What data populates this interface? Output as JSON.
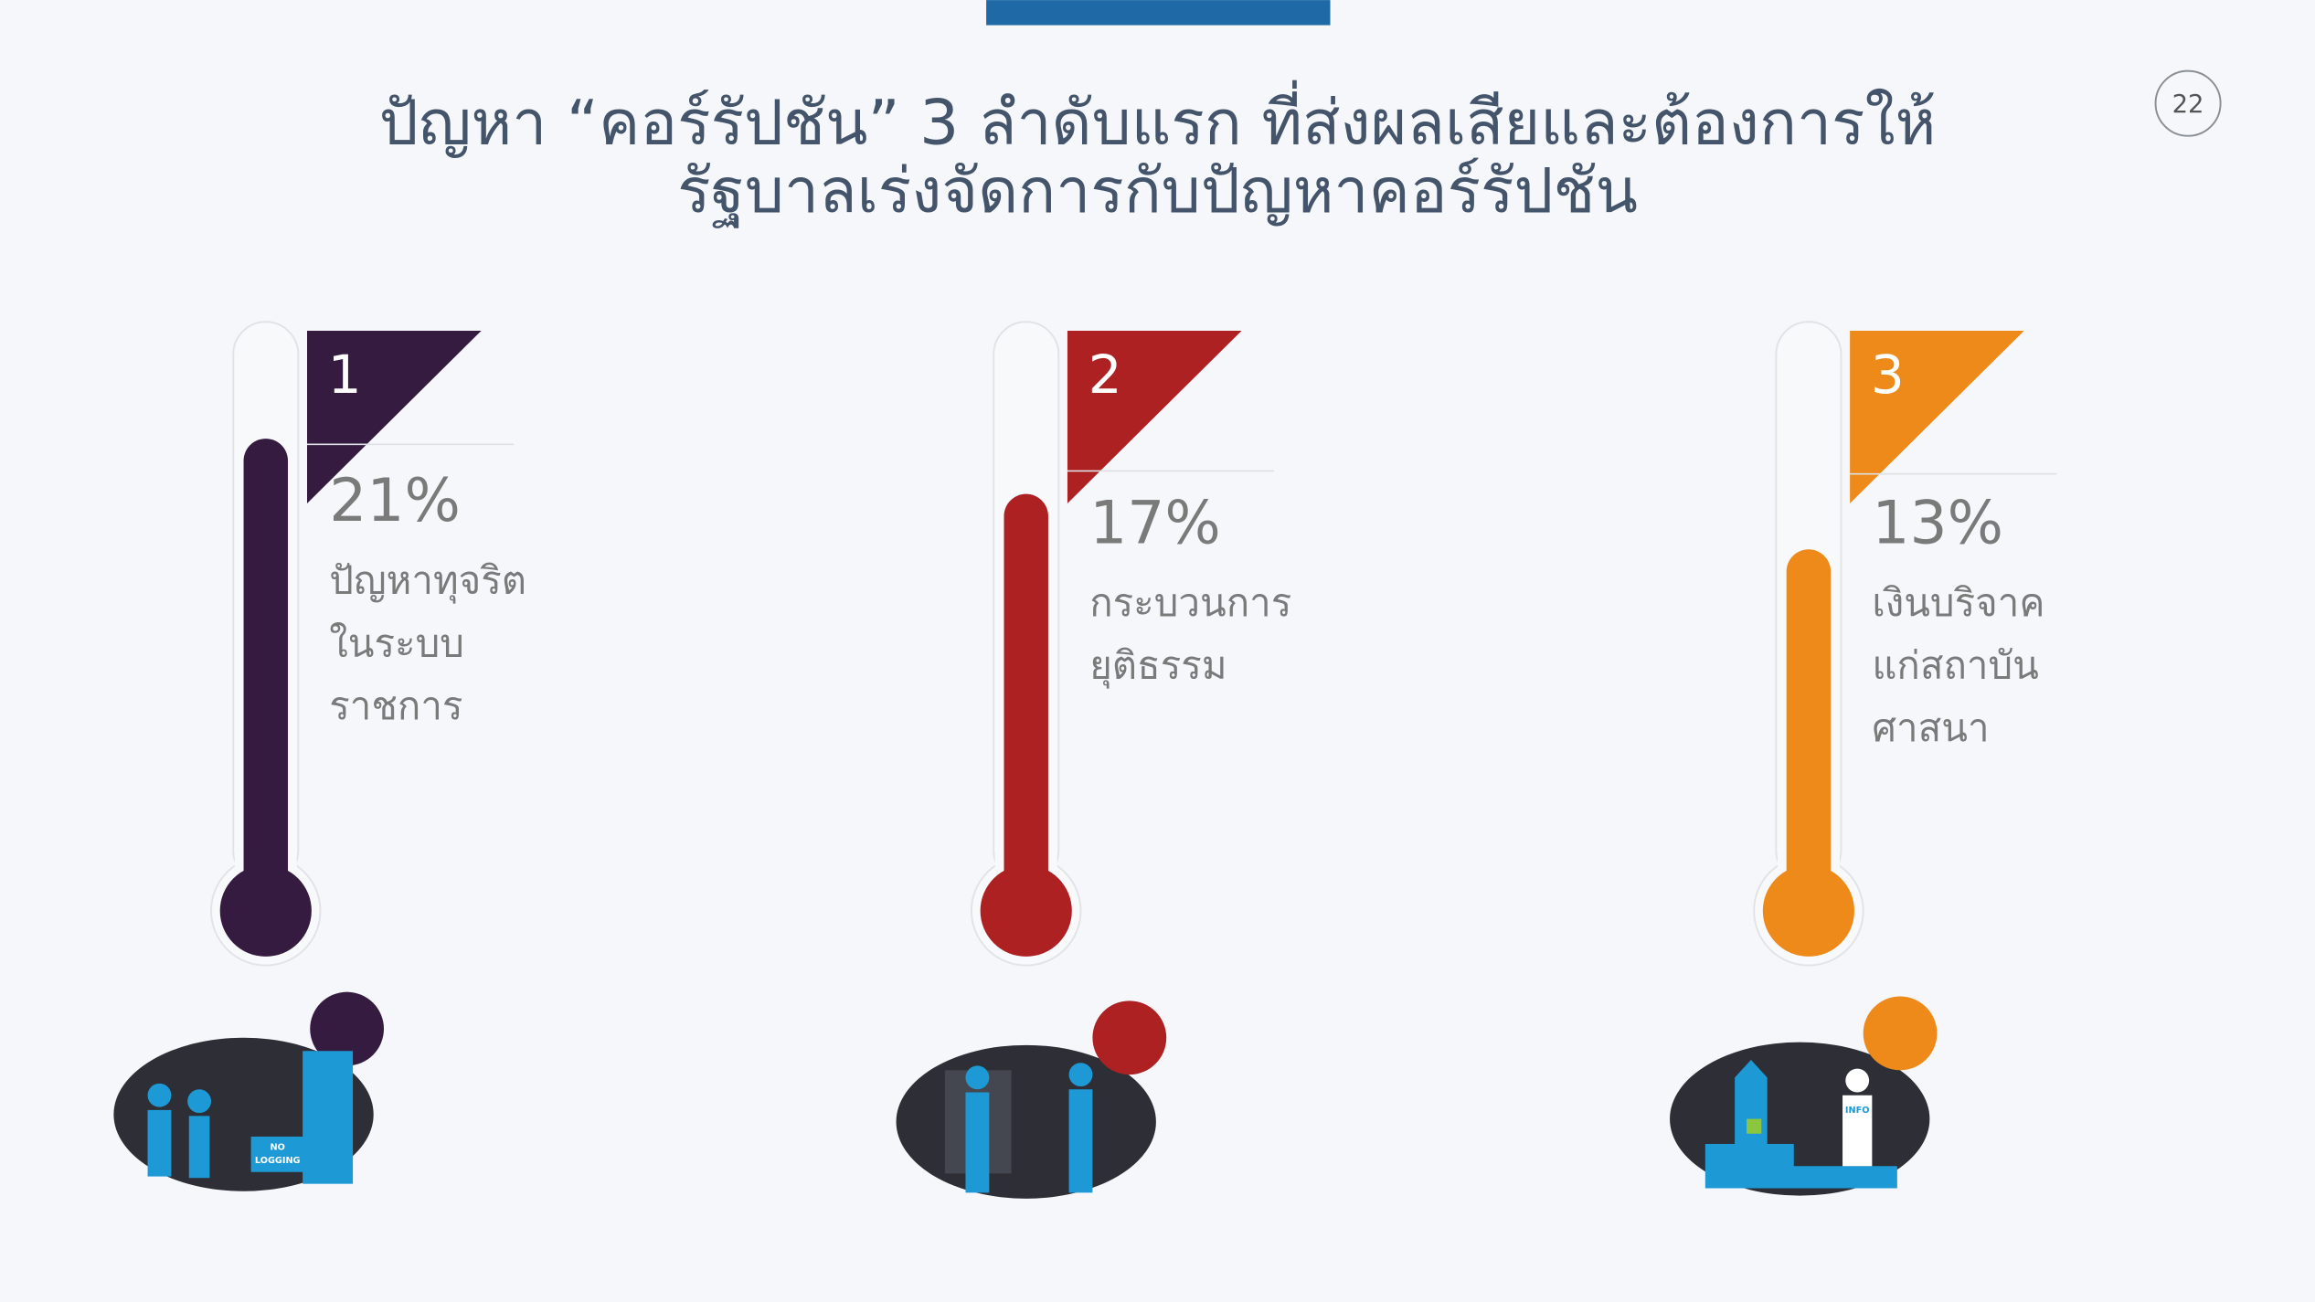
{
  "page_number": 22,
  "illustration_labels": [
    [
      "NO",
      "LOGGING"
    ],
    "INFO"
  ],
  "chart_data": {
    "type": "bar",
    "title": [
      "ปัญหา “คอร์รัปชัน” 3 ลำดับแรก ที่ส่งผลเสียและต้องการให้",
      "รัฐบาลเร่งจัดการกับปัญหาคอร์รัปชัน"
    ],
    "ranks": [
      1,
      2,
      3
    ],
    "categories": [
      [
        "ปัญหาทุจริต",
        "ในระบบ",
        "ราชการ"
      ],
      [
        "กระบวนการ",
        "ยุติธรรม"
      ],
      [
        "เงินบริจาค",
        "แก่สถาบัน",
        "ศาสนา"
      ]
    ],
    "values": [
      21,
      17,
      13
    ],
    "value_labels": [
      "21%",
      "17%",
      "13%"
    ],
    "colors": [
      "#351b3f",
      "#ad2123",
      "#ee8a1a"
    ]
  }
}
